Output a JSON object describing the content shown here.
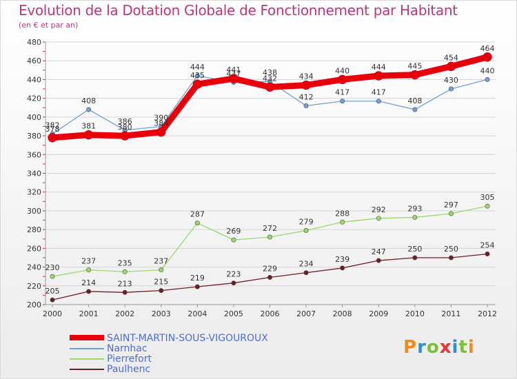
{
  "title": "Evolution de la Dotation Globale de Fonctionnement par Habitant",
  "subtitle": "(en € et par an)",
  "logo": "Proxiti",
  "chart_data": {
    "type": "line",
    "x": [
      "2000",
      "2001",
      "2002",
      "2003",
      "2004",
      "2005",
      "2006",
      "2007",
      "2008",
      "2009",
      "2010",
      "2011",
      "2012"
    ],
    "ylim": [
      200,
      480
    ],
    "yticks": [
      200,
      220,
      240,
      260,
      280,
      300,
      320,
      340,
      360,
      380,
      400,
      420,
      440,
      460,
      480
    ],
    "grid": "horizontal",
    "legend_position": "bottom-left",
    "series": [
      {
        "name": "SAINT-MARTIN-SOUS-VIGOUROUX",
        "color": "#e8000b",
        "values": [
          378,
          381,
          380,
          384,
          435,
          441,
          432,
          434,
          440,
          444,
          445,
          454,
          464
        ]
      },
      {
        "name": "Narnhac",
        "color": "#6f9fd3",
        "values": [
          382,
          408,
          386,
          390,
          444,
          437,
          438,
          412,
          417,
          417,
          408,
          430,
          440
        ]
      },
      {
        "name": "Pierrefort",
        "color": "#9ad86a",
        "values": [
          230,
          237,
          235,
          237,
          287,
          269,
          272,
          279,
          288,
          292,
          293,
          297,
          305
        ]
      },
      {
        "name": "Paulhenc",
        "color": "#6b1d24",
        "values": [
          205,
          214,
          213,
          215,
          219,
          223,
          229,
          234,
          239,
          247,
          250,
          250,
          254
        ]
      }
    ]
  }
}
